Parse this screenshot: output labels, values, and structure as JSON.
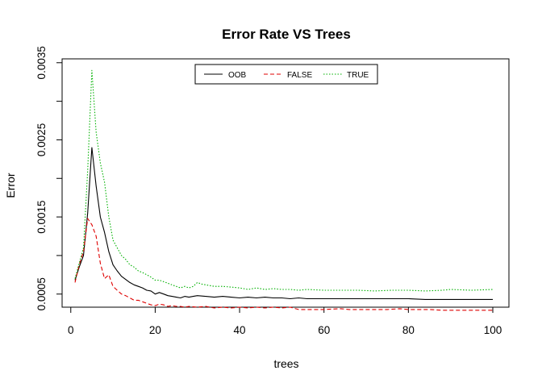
{
  "chart_data": {
    "type": "line",
    "title": "Error Rate VS Trees",
    "xlabel": "trees",
    "ylabel": "Error",
    "xlim": [
      1,
      100
    ],
    "ylim": [
      0.00033,
      0.00355
    ],
    "xticks": [
      0,
      20,
      40,
      60,
      80,
      100
    ],
    "xtick_labels": [
      "0",
      "20",
      "40",
      "60",
      "80",
      "100"
    ],
    "yticks": [
      0.0005,
      0.001,
      0.0015,
      0.002,
      0.0025,
      0.003,
      0.0035
    ],
    "ytick_labels": [
      "0.0005",
      "",
      "0.0015",
      "",
      "0.0025",
      "",
      "0.0035"
    ],
    "legend_position": "top",
    "grid": false,
    "series": [
      {
        "name": "OOB",
        "color": "#000000",
        "dash": "solid",
        "points": [
          [
            1,
            0.00068
          ],
          [
            2,
            0.00085
          ],
          [
            3,
            0.001
          ],
          [
            4,
            0.00155
          ],
          [
            5,
            0.0024
          ],
          [
            6,
            0.0019
          ],
          [
            7,
            0.0015
          ],
          [
            8,
            0.0013
          ],
          [
            9,
            0.00105
          ],
          [
            10,
            0.00088
          ],
          [
            11,
            0.0008
          ],
          [
            12,
            0.00073
          ],
          [
            13,
            0.00069
          ],
          [
            14,
            0.00065
          ],
          [
            15,
            0.00062
          ],
          [
            16,
            0.0006
          ],
          [
            17,
            0.00058
          ],
          [
            18,
            0.00055
          ],
          [
            19,
            0.00054
          ],
          [
            20,
            0.0005
          ],
          [
            21,
            0.00052
          ],
          [
            22,
            0.0005
          ],
          [
            23,
            0.00048
          ],
          [
            24,
            0.00047
          ],
          [
            25,
            0.00046
          ],
          [
            26,
            0.00045
          ],
          [
            27,
            0.00047
          ],
          [
            28,
            0.00046
          ],
          [
            29,
            0.00047
          ],
          [
            30,
            0.00048
          ],
          [
            32,
            0.00047
          ],
          [
            34,
            0.00046
          ],
          [
            36,
            0.00047
          ],
          [
            38,
            0.00046
          ],
          [
            40,
            0.00045
          ],
          [
            42,
            0.00046
          ],
          [
            44,
            0.00045
          ],
          [
            46,
            0.00046
          ],
          [
            48,
            0.00045
          ],
          [
            50,
            0.00045
          ],
          [
            52,
            0.00044
          ],
          [
            54,
            0.00045
          ],
          [
            56,
            0.00044
          ],
          [
            60,
            0.00044
          ],
          [
            65,
            0.00044
          ],
          [
            70,
            0.00044
          ],
          [
            75,
            0.00044
          ],
          [
            80,
            0.00044
          ],
          [
            84,
            0.00043
          ],
          [
            90,
            0.00043
          ],
          [
            95,
            0.00043
          ],
          [
            100,
            0.00043
          ]
        ]
      },
      {
        "name": "FALSE",
        "color": "#df0000",
        "dash": "dashed",
        "points": [
          [
            1,
            0.00065
          ],
          [
            2,
            0.00088
          ],
          [
            3,
            0.00105
          ],
          [
            4,
            0.00148
          ],
          [
            5,
            0.0014
          ],
          [
            6,
            0.00125
          ],
          [
            7,
            0.0009
          ],
          [
            8,
            0.0007
          ],
          [
            9,
            0.00075
          ],
          [
            10,
            0.0006
          ],
          [
            11,
            0.00055
          ],
          [
            12,
            0.0005
          ],
          [
            13,
            0.00048
          ],
          [
            14,
            0.00045
          ],
          [
            15,
            0.00042
          ],
          [
            16,
            0.00042
          ],
          [
            17,
            0.0004
          ],
          [
            18,
            0.00038
          ],
          [
            19,
            0.00036
          ],
          [
            20,
            0.00035
          ],
          [
            21,
            0.00037
          ],
          [
            22,
            0.00036
          ],
          [
            23,
            0.00034
          ],
          [
            24,
            0.00035
          ],
          [
            25,
            0.00034
          ],
          [
            26,
            0.00034
          ],
          [
            27,
            0.00033
          ],
          [
            28,
            0.00034
          ],
          [
            30,
            0.00033
          ],
          [
            32,
            0.00034
          ],
          [
            34,
            0.00032
          ],
          [
            36,
            0.00033
          ],
          [
            38,
            0.00032
          ],
          [
            40,
            0.00033
          ],
          [
            42,
            0.00032
          ],
          [
            44,
            0.00033
          ],
          [
            46,
            0.00032
          ],
          [
            48,
            0.00033
          ],
          [
            50,
            0.00032
          ],
          [
            52,
            0.00033
          ],
          [
            54,
            0.0003
          ],
          [
            56,
            0.0003
          ],
          [
            60,
            0.0003
          ],
          [
            64,
            0.00031
          ],
          [
            66,
            0.0003
          ],
          [
            70,
            0.0003
          ],
          [
            75,
            0.0003
          ],
          [
            78,
            0.00031
          ],
          [
            80,
            0.0003
          ],
          [
            85,
            0.0003
          ],
          [
            88,
            0.00029
          ],
          [
            92,
            0.00029
          ],
          [
            96,
            0.00029
          ],
          [
            100,
            0.00029
          ]
        ]
      },
      {
        "name": "TRUE",
        "color": "#00b000",
        "dash": "dotted",
        "points": [
          [
            1,
            0.0007
          ],
          [
            2,
            0.0009
          ],
          [
            3,
            0.0011
          ],
          [
            4,
            0.0021
          ],
          [
            5,
            0.0034
          ],
          [
            6,
            0.0026
          ],
          [
            7,
            0.0022
          ],
          [
            8,
            0.00195
          ],
          [
            9,
            0.0015
          ],
          [
            10,
            0.0012
          ],
          [
            11,
            0.0011
          ],
          [
            12,
            0.001
          ],
          [
            13,
            0.00095
          ],
          [
            14,
            0.00088
          ],
          [
            15,
            0.00085
          ],
          [
            16,
            0.0008
          ],
          [
            17,
            0.00078
          ],
          [
            18,
            0.00075
          ],
          [
            19,
            0.00072
          ],
          [
            20,
            0.00068
          ],
          [
            21,
            0.00068
          ],
          [
            22,
            0.00066
          ],
          [
            23,
            0.00064
          ],
          [
            24,
            0.00062
          ],
          [
            25,
            0.0006
          ],
          [
            26,
            0.00058
          ],
          [
            27,
            0.0006
          ],
          [
            28,
            0.00058
          ],
          [
            29,
            0.0006
          ],
          [
            30,
            0.00065
          ],
          [
            31,
            0.00063
          ],
          [
            32,
            0.00062
          ],
          [
            34,
            0.0006
          ],
          [
            36,
            0.0006
          ],
          [
            38,
            0.00059
          ],
          [
            40,
            0.00058
          ],
          [
            42,
            0.00056
          ],
          [
            44,
            0.00058
          ],
          [
            46,
            0.00056
          ],
          [
            48,
            0.00057
          ],
          [
            50,
            0.00056
          ],
          [
            52,
            0.00056
          ],
          [
            54,
            0.00055
          ],
          [
            56,
            0.00056
          ],
          [
            60,
            0.00055
          ],
          [
            64,
            0.00055
          ],
          [
            68,
            0.00055
          ],
          [
            72,
            0.00054
          ],
          [
            76,
            0.00055
          ],
          [
            80,
            0.00055
          ],
          [
            84,
            0.00054
          ],
          [
            88,
            0.00055
          ],
          [
            90,
            0.00056
          ],
          [
            95,
            0.00055
          ],
          [
            100,
            0.00056
          ]
        ]
      }
    ]
  }
}
